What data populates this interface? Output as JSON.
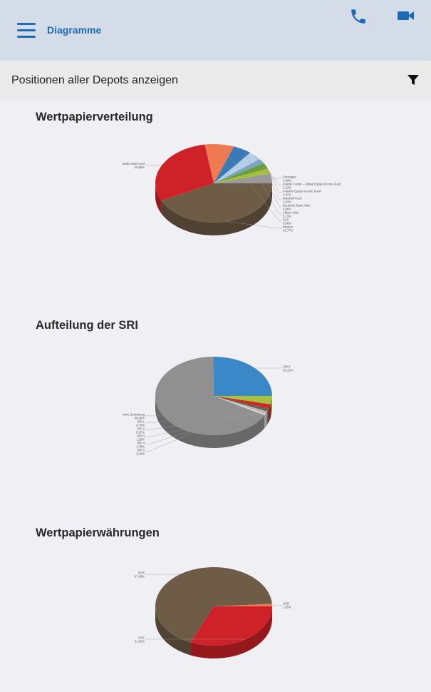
{
  "header": {
    "title": "Diagramme",
    "menu_icon": "hamburger-menu-icon",
    "phone_icon": "phone-icon",
    "video_icon": "video-camera-icon",
    "accent_color": "#1d6ab8",
    "background_color": "#d3dce7"
  },
  "filter": {
    "label": "Positionen aller Depots anzeigen",
    "icon": "filter-icon"
  },
  "sections": [
    {
      "title": "Wertpapierverteilung"
    },
    {
      "title": "Aufteilung der SRI"
    },
    {
      "title": "Wertpapierwährungen"
    }
  ],
  "chart_data": [
    {
      "type": "pie",
      "title": "Wertpapierverteilung",
      "slices": [
        {
          "name": "Sonstiges",
          "label": "Sonstiges",
          "value_label": "4,09%",
          "value": 4.09,
          "color": "#9a9a9a"
        },
        {
          "name": "Fidelity Funds – Global Equity Income Fund",
          "label": "Fidelity Funds – Global Equity Income Fund",
          "value_label": "2,12%",
          "value": 2.12,
          "color": "#a7c23a"
        },
        {
          "name": "Franklin Equity Income Fund",
          "label": "Franklin Equity Income Fund",
          "value_label": "2,47%",
          "value": 2.47,
          "color": "#6aa03a"
        },
        {
          "name": "Windmill Fund",
          "label": "Windmill Fund",
          "value_label": "1,93%",
          "value": 1.93,
          "color": "#7aa4c8"
        },
        {
          "name": "Deutsche Bank Aktie",
          "label": "Deutsche Bank Aktie",
          "value_label": "3,66%",
          "value": 3.66,
          "color": "#b6cfe6"
        },
        {
          "name": "Allianz Aktie",
          "label": "Allianz Aktie",
          "value_label": "5,13%",
          "value": 5.13,
          "color": "#3a7ab6"
        },
        {
          "name": "SAP",
          "label": "SAP",
          "value_label": "8,08%",
          "value": 8.08,
          "color": "#ee7a52"
        },
        {
          "name": "Multi Asset Fund",
          "label": "Multi Asset Fund",
          "value_label": "29,85%",
          "value": 29.85,
          "color": "#cf2228"
        },
        {
          "name": "Weitere",
          "label": "Weitere",
          "value_label": "42,77%",
          "value": 42.77,
          "color": "#6e5c46"
        }
      ]
    },
    {
      "type": "pie",
      "title": "Aufteilung der SRI",
      "slices": [
        {
          "name": "SRI 6",
          "label": "SRI 6",
          "value_label": "25,13%",
          "value": 25.13,
          "color": "#3a88c8"
        },
        {
          "name": "ohne Zuordnung",
          "label": "ohne Zuordnung",
          "value_label": "66,66%",
          "value": 66.66,
          "color": "#909090"
        },
        {
          "name": "SRI 1",
          "label": "SRI 1",
          "value_label": "0,78%",
          "value": 0.78,
          "color": "#d9d9d9"
        },
        {
          "name": "SRI 2",
          "label": "SRI 2",
          "value_label": "0,97%",
          "value": 0.97,
          "color": "#b9b9b9"
        },
        {
          "name": "SRI 3",
          "label": "SRI 3",
          "value_label": "1,26%",
          "value": 1.26,
          "color": "#6e5c46"
        },
        {
          "name": "SRI 4",
          "label": "SRI 4",
          "value_label": "1,78%",
          "value": 1.78,
          "color": "#cf2228"
        },
        {
          "name": "SRI 5",
          "label": "SRI 5",
          "value_label": "3,42%",
          "value": 3.42,
          "color": "#a7c23a"
        }
      ]
    },
    {
      "type": "pie",
      "title": "Wertpapierwährungen",
      "slices": [
        {
          "name": "USD",
          "label": "USD",
          "value_label": "1,05%",
          "value": 1.05,
          "color": "#ee7a52"
        },
        {
          "name": "EUR",
          "label": "EUR",
          "value_label": "67,45%",
          "value": 67.45,
          "color": "#6e5c46"
        },
        {
          "name": "CHF",
          "label": "CHF",
          "value_label": "31,50%",
          "value": 31.5,
          "color": "#cf2228"
        }
      ]
    }
  ]
}
